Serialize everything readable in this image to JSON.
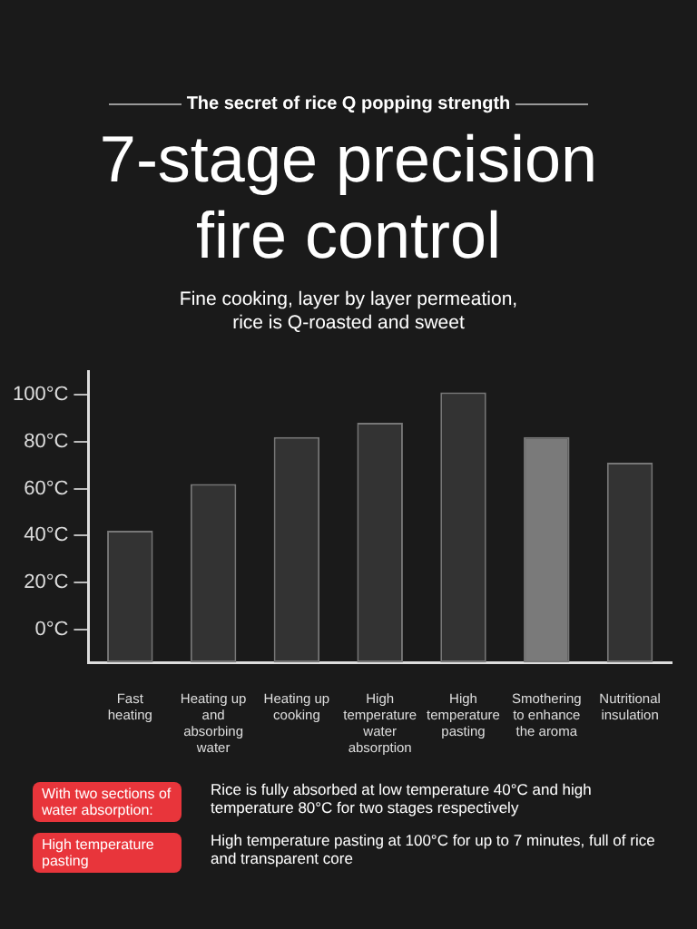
{
  "chart_data": {
    "type": "bar",
    "title": "7-stage precision fire control",
    "subtitle": "Fine cooking, layer by layer permeation, rice is Q-roasted and sweet",
    "categories": [
      "Fast heating",
      "Heating up and absorbing water",
      "Heating up cooking",
      "High temperature water absorption",
      "High temperature pasting",
      "Smothering to enhance the aroma",
      "Nutritional insulation"
    ],
    "base": [
      -14,
      -14,
      -14,
      -14,
      -14,
      -14,
      -14
    ],
    "values": [
      56,
      76,
      96,
      102,
      115,
      96,
      85
    ],
    "colors": [
      "#333333",
      "#333333",
      "#333333",
      "#333333",
      "#333333",
      "#7a7a7a",
      "#333333"
    ],
    "ylim": [
      -14,
      110
    ],
    "yticks": [
      {
        "value": 0,
        "label": "0°C"
      },
      {
        "value": 20,
        "label": "20°C"
      },
      {
        "value": 40,
        "label": "40°C"
      },
      {
        "value": 60,
        "label": "60°C"
      },
      {
        "value": 80,
        "label": "80°C"
      },
      {
        "value": 100,
        "label": "100°C"
      }
    ],
    "grid": false,
    "legend": false,
    "annotations": [
      "The secret of rice Q popping strength",
      "With two sections of water absorption:",
      "Rice is fully absorbed at low temperature 40°C and high temperature 80°C for two stages respectively",
      "High temperature pasting",
      "High temperature pasting at 100°C for up to 7 minutes, full of rice and transparent core"
    ]
  }
}
